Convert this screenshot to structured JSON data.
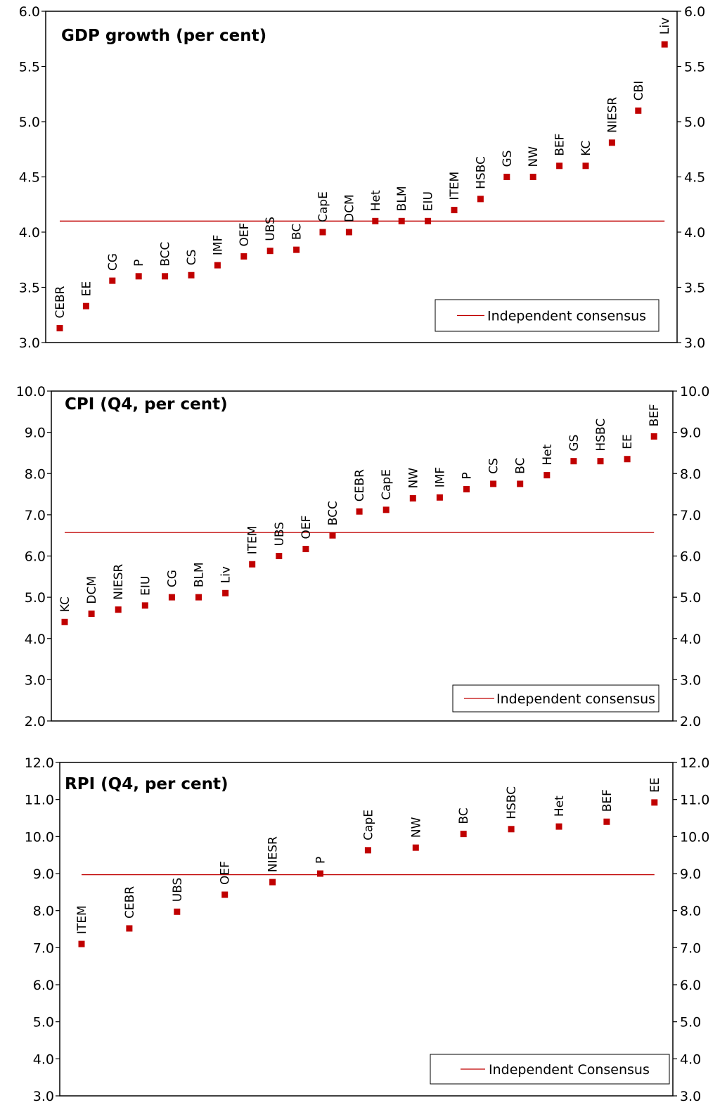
{
  "chart_data": [
    {
      "type": "scatter",
      "title": "GDP growth (per cent)",
      "ylim": [
        3.0,
        6.0
      ],
      "ytick_labels": [
        "3.0",
        "3.5",
        "4.0",
        "4.5",
        "5.0",
        "5.5",
        "6.0"
      ],
      "ytick_values": [
        3.0,
        3.5,
        4.0,
        4.5,
        5.0,
        5.5,
        6.0
      ],
      "categories": [
        "CEBR",
        "EE",
        "CG",
        "P",
        "BCC",
        "CS",
        "IMF",
        "OEF",
        "UBS",
        "BC",
        "CapE",
        "DCM",
        "Het",
        "BLM",
        "EIU",
        "ITEM",
        "HSBC",
        "GS",
        "NW",
        "BEF",
        "KC",
        "NIESR",
        "CBI",
        "Liv"
      ],
      "values": [
        3.13,
        3.33,
        3.56,
        3.6,
        3.6,
        3.61,
        3.7,
        3.78,
        3.83,
        3.84,
        4.0,
        4.0,
        4.1,
        4.1,
        4.1,
        4.2,
        4.3,
        4.5,
        4.5,
        4.6,
        4.6,
        4.81,
        5.1,
        5.7
      ],
      "consensus": {
        "label": "Independent consensus",
        "value": 4.1
      },
      "legend_position": "bottom-right",
      "grid": false,
      "colors": {
        "marker": "#c00000",
        "line": "#c00000"
      }
    },
    {
      "type": "scatter",
      "title": "CPI (Q4, per cent)",
      "ylim": [
        2.0,
        10.0
      ],
      "ytick_labels": [
        "2.0",
        "3.0",
        "4.0",
        "5.0",
        "6.0",
        "7.0",
        "8.0",
        "9.0",
        "10.0"
      ],
      "ytick_values": [
        2.0,
        3.0,
        4.0,
        5.0,
        6.0,
        7.0,
        8.0,
        9.0,
        10.0
      ],
      "categories": [
        "KC",
        "DCM",
        "NIESR",
        "EIU",
        "CG",
        "BLM",
        "Liv",
        "ITEM",
        "UBS",
        "OEF",
        "BCC",
        "CEBR",
        "CapE",
        "NW",
        "IMF",
        "P",
        "CS",
        "BC",
        "Het",
        "GS",
        "HSBC",
        "EE",
        "BEF"
      ],
      "values": [
        4.4,
        4.6,
        4.7,
        4.8,
        5.0,
        5.0,
        5.1,
        5.8,
        6.0,
        6.17,
        6.5,
        7.08,
        7.12,
        7.4,
        7.42,
        7.62,
        7.75,
        7.75,
        7.96,
        8.3,
        8.3,
        8.35,
        8.9
      ],
      "consensus": {
        "label": "Independent consensus",
        "value": 6.57
      },
      "legend_position": "bottom-right",
      "grid": false,
      "colors": {
        "marker": "#c00000",
        "line": "#c00000"
      }
    },
    {
      "type": "scatter",
      "title": "RPI (Q4, per cent)",
      "ylim": [
        3.0,
        12.0
      ],
      "ytick_labels": [
        "3.0",
        "4.0",
        "5.0",
        "6.0",
        "7.0",
        "8.0",
        "9.0",
        "10.0",
        "11.0",
        "12.0"
      ],
      "ytick_values": [
        3.0,
        4.0,
        5.0,
        6.0,
        7.0,
        8.0,
        9.0,
        10.0,
        11.0,
        12.0
      ],
      "categories": [
        "ITEM",
        "CEBR",
        "UBS",
        "OEF",
        "NIESR",
        "P",
        "CapE",
        "NW",
        "BC",
        "HSBC",
        "Het",
        "BEF",
        "EE"
      ],
      "values": [
        7.1,
        7.52,
        7.97,
        8.43,
        8.77,
        9.0,
        9.63,
        9.7,
        10.07,
        10.2,
        10.27,
        10.4,
        10.92
      ],
      "consensus": {
        "label": "Independent Consensus",
        "value": 8.97
      },
      "legend_position": "bottom-right",
      "grid": false,
      "colors": {
        "marker": "#c00000",
        "line": "#c00000"
      }
    }
  ]
}
